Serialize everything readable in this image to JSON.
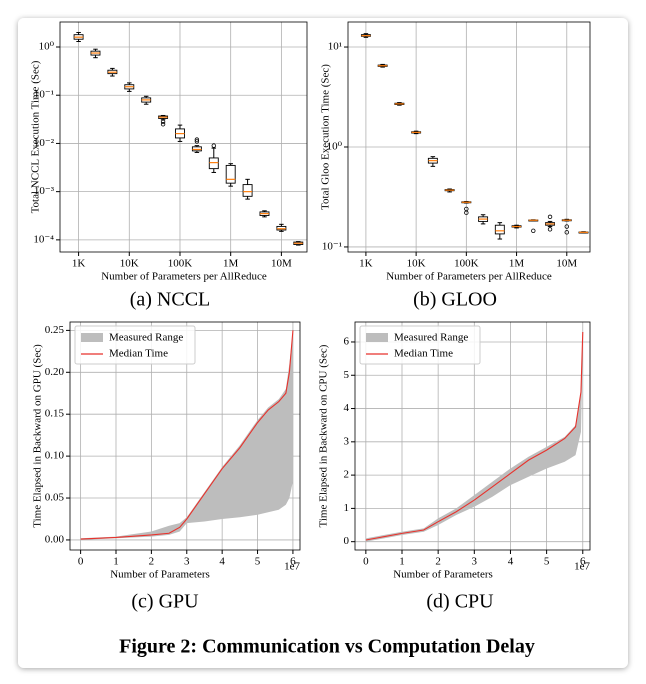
{
  "chart_data": [
    {
      "type": "box",
      "caption": "(a) NCCL",
      "xlabel": "Number of Parameters per AllReduce",
      "ylabel": "Total NCCL Execution Time (Sec)",
      "log_x": true,
      "log_y": true,
      "grid": true,
      "ytick_color": "#e00000",
      "box_color": "#000000",
      "median_color": "#ff7f0e",
      "x": [
        1000,
        2154,
        4642,
        10000,
        21544,
        46416,
        100000,
        215443,
        464159,
        1000000,
        2154435,
        4641589,
        10000000,
        21544347
      ],
      "boxes": [
        {
          "low": 1.3,
          "q1": 1.45,
          "median": 1.6,
          "q3": 1.8,
          "high": 2.0
        },
        {
          "low": 0.6,
          "q1": 0.68,
          "median": 0.75,
          "q3": 0.82,
          "high": 0.9
        },
        {
          "low": 0.25,
          "q1": 0.28,
          "median": 0.3,
          "q3": 0.33,
          "high": 0.36
        },
        {
          "low": 0.12,
          "q1": 0.135,
          "median": 0.15,
          "q3": 0.165,
          "high": 0.18
        },
        {
          "low": 0.065,
          "q1": 0.072,
          "median": 0.08,
          "q3": 0.088,
          "high": 0.095
        },
        {
          "low": 0.031,
          "q1": 0.033,
          "median": 0.035,
          "q3": 0.037,
          "high": 0.038,
          "outliers": [
            0.028,
            0.025
          ]
        },
        {
          "low": 0.011,
          "q1": 0.013,
          "median": 0.016,
          "q3": 0.02,
          "high": 0.024
        },
        {
          "low": 0.0065,
          "q1": 0.007,
          "median": 0.0075,
          "q3": 0.0085,
          "high": 0.009,
          "outliers": [
            0.011,
            0.012
          ]
        },
        {
          "low": 0.0025,
          "q1": 0.003,
          "median": 0.004,
          "q3": 0.005,
          "high": 0.008,
          "outliers": [
            0.009
          ]
        },
        {
          "low": 0.0013,
          "q1": 0.0015,
          "median": 0.0018,
          "q3": 0.0035,
          "high": 0.0038
        },
        {
          "low": 0.0007,
          "q1": 0.0008,
          "median": 0.001,
          "q3": 0.0014,
          "high": 0.0018
        },
        {
          "low": 0.0003,
          "q1": 0.00032,
          "median": 0.00035,
          "q3": 0.00038,
          "high": 0.0004
        },
        {
          "low": 0.00015,
          "q1": 0.00016,
          "median": 0.00017,
          "q3": 0.00019,
          "high": 0.00021
        },
        {
          "low": 7.8e-05,
          "q1": 8e-05,
          "median": 8.5e-05,
          "q3": 9e-05,
          "high": 9.2e-05
        }
      ],
      "xlim": [
        430,
        32000000
      ],
      "ylim": [
        5.6e-05,
        3.3
      ],
      "xticks": [
        {
          "value": 1000,
          "label": "1K"
        },
        {
          "value": 10000,
          "label": "10K"
        },
        {
          "value": 100000,
          "label": "100K"
        },
        {
          "value": 1000000,
          "label": "1M"
        },
        {
          "value": 10000000,
          "label": "10M"
        }
      ],
      "yticks": [
        {
          "value": 0.0001,
          "label": "10⁻⁴"
        },
        {
          "value": 0.001,
          "label": "10⁻³"
        },
        {
          "value": 0.01,
          "label": "10⁻²"
        },
        {
          "value": 0.1,
          "label": "10⁻¹"
        },
        {
          "value": 1,
          "label": "10⁰"
        }
      ]
    },
    {
      "type": "box",
      "caption": "(b) GLOO",
      "xlabel": "Number of Parameters per AllReduce",
      "ylabel": "Total Gloo Execution Time (Sec)",
      "log_x": true,
      "log_y": true,
      "grid": true,
      "ytick_color": "#e00000",
      "box_color": "#000000",
      "median_color": "#ff7f0e",
      "x": [
        1000,
        2154,
        4642,
        10000,
        21544,
        46416,
        100000,
        215443,
        464159,
        1000000,
        2154435,
        4641589,
        10000000,
        21544347
      ],
      "boxes": [
        {
          "low": 12.5,
          "q1": 12.8,
          "median": 13,
          "q3": 13.3,
          "high": 13.6
        },
        {
          "low": 6.3,
          "q1": 6.4,
          "median": 6.5,
          "q3": 6.6,
          "high": 6.7
        },
        {
          "low": 2.62,
          "q1": 2.66,
          "median": 2.7,
          "q3": 2.74,
          "high": 2.78
        },
        {
          "low": 1.36,
          "q1": 1.38,
          "median": 1.4,
          "q3": 1.42,
          "high": 1.44
        },
        {
          "low": 0.64,
          "q1": 0.69,
          "median": 0.73,
          "q3": 0.77,
          "high": 0.8
        },
        {
          "low": 0.355,
          "q1": 0.365,
          "median": 0.37,
          "q3": 0.375,
          "high": 0.38
        },
        {
          "low": 0.275,
          "q1": 0.278,
          "median": 0.28,
          "q3": 0.283,
          "high": 0.285,
          "outliers": [
            0.24,
            0.22
          ]
        },
        {
          "low": 0.17,
          "q1": 0.18,
          "median": 0.19,
          "q3": 0.2,
          "high": 0.21
        },
        {
          "low": 0.12,
          "q1": 0.135,
          "median": 0.145,
          "q3": 0.165,
          "high": 0.175
        },
        {
          "low": 0.155,
          "q1": 0.158,
          "median": 0.16,
          "q3": 0.163,
          "high": 0.165
        },
        {
          "low": 0.183,
          "q1": 0.184,
          "median": 0.185,
          "q3": 0.186,
          "high": 0.187,
          "outliers": [
            0.145
          ]
        },
        {
          "low": 0.16,
          "q1": 0.165,
          "median": 0.17,
          "q3": 0.175,
          "high": 0.18,
          "outliers": [
            0.2,
            0.15
          ]
        },
        {
          "low": 0.182,
          "q1": 0.184,
          "median": 0.185,
          "q3": 0.187,
          "high": 0.189,
          "outliers": [
            0.16,
            0.14
          ]
        },
        {
          "low": 0.138,
          "q1": 0.139,
          "median": 0.14,
          "q3": 0.141,
          "high": 0.142
        }
      ],
      "xlim": [
        440,
        29000000
      ],
      "ylim": [
        0.089,
        17.8
      ],
      "xticks": [
        {
          "value": 1000,
          "label": "1K"
        },
        {
          "value": 10000,
          "label": "10K"
        },
        {
          "value": 100000,
          "label": "100K"
        },
        {
          "value": 1000000,
          "label": "1M"
        },
        {
          "value": 10000000,
          "label": "10M"
        }
      ],
      "yticks": [
        {
          "value": 0.1,
          "label": "10⁻¹"
        },
        {
          "value": 1,
          "label": "10⁰"
        },
        {
          "value": 10,
          "label": "10¹"
        }
      ]
    },
    {
      "type": "range_line",
      "caption": "(c) GPU",
      "xlabel": "Number of Parameters",
      "ylabel": "Time Elapsed in Backward on GPU (Sec)",
      "x_offset_label": "1e7",
      "grid": true,
      "legend": "upper left",
      "ytick_color": "#e00000",
      "x": [
        0,
        10000000,
        20000000,
        25000000,
        28000000,
        30000000,
        35000000,
        40000000,
        45000000,
        50000000,
        53000000,
        56000000,
        58000000,
        59000000,
        60000000
      ],
      "range": {
        "name": "Measured Range",
        "color": "#bdbdbd",
        "low": [
          0,
          0.002,
          0.004,
          0.006,
          0.01,
          0.02,
          0.022,
          0.025,
          0.027,
          0.03,
          0.033,
          0.036,
          0.042,
          0.05,
          0.07
        ],
        "high": [
          0.002,
          0.004,
          0.01,
          0.017,
          0.02,
          0.027,
          0.057,
          0.087,
          0.113,
          0.143,
          0.158,
          0.168,
          0.18,
          0.21,
          0.25
        ]
      },
      "series": [
        {
          "name": "Median Time",
          "color": "#e8322c",
          "values": [
            0.001,
            0.003,
            0.006,
            0.008,
            0.015,
            0.025,
            0.055,
            0.085,
            0.11,
            0.14,
            0.155,
            0.165,
            0.175,
            0.2,
            0.25
          ]
        }
      ],
      "xlim": [
        -3000000,
        62000000
      ],
      "ylim": [
        -0.012,
        0.26
      ],
      "xticks": [
        0,
        {
          "value": 10000000,
          "label": "1"
        },
        {
          "value": 20000000,
          "label": "2"
        },
        {
          "value": 30000000,
          "label": "3"
        },
        {
          "value": 40000000,
          "label": "4"
        },
        {
          "value": 50000000,
          "label": "5"
        },
        {
          "value": 60000000,
          "label": "6"
        }
      ],
      "yticks": [
        {
          "value": 0,
          "label": "0.00"
        },
        0.05,
        {
          "value": 0.1,
          "label": "0.10"
        },
        0.15,
        {
          "value": 0.2,
          "label": "0.20"
        },
        0.25
      ]
    },
    {
      "type": "range_line",
      "caption": "(d) CPU",
      "xlabel": "Number of Parameters",
      "ylabel": "Time Elapsed in Backward on CPU (Sec)",
      "x_offset_label": "1e7",
      "grid": true,
      "legend": "upper left",
      "ytick_color": "#e00000",
      "x": [
        0,
        5000000,
        10000000,
        16000000,
        20000000,
        25000000,
        30000000,
        35000000,
        40000000,
        45000000,
        50000000,
        55000000,
        58000000,
        59500000,
        60000000
      ],
      "range": {
        "name": "Measured Range",
        "color": "#bdbdbd",
        "low": [
          0,
          0.1,
          0.2,
          0.3,
          0.5,
          0.8,
          1.05,
          1.35,
          1.7,
          1.95,
          2.2,
          2.4,
          2.6,
          3.3,
          5.8
        ],
        "high": [
          0.1,
          0.2,
          0.3,
          0.4,
          0.7,
          1.0,
          1.4,
          1.8,
          2.2,
          2.55,
          2.85,
          3.15,
          3.5,
          4.5,
          6.3
        ]
      },
      "series": [
        {
          "name": "Median Time",
          "color": "#e8322c",
          "values": [
            0.05,
            0.15,
            0.25,
            0.35,
            0.6,
            0.9,
            1.25,
            1.65,
            2.05,
            2.45,
            2.75,
            3.1,
            3.45,
            4.5,
            6.3
          ]
        }
      ],
      "xlim": [
        -3000000,
        62000000
      ],
      "ylim": [
        -0.25,
        6.6
      ],
      "xticks": [
        0,
        {
          "value": 10000000,
          "label": "1"
        },
        {
          "value": 20000000,
          "label": "2"
        },
        {
          "value": 30000000,
          "label": "3"
        },
        {
          "value": 40000000,
          "label": "4"
        },
        {
          "value": 50000000,
          "label": "5"
        },
        {
          "value": 60000000,
          "label": "6"
        }
      ],
      "yticks": [
        0,
        1,
        2,
        3,
        4,
        5,
        6
      ]
    }
  ],
  "figure_caption": "Figure 2: Communication vs Computation Delay"
}
